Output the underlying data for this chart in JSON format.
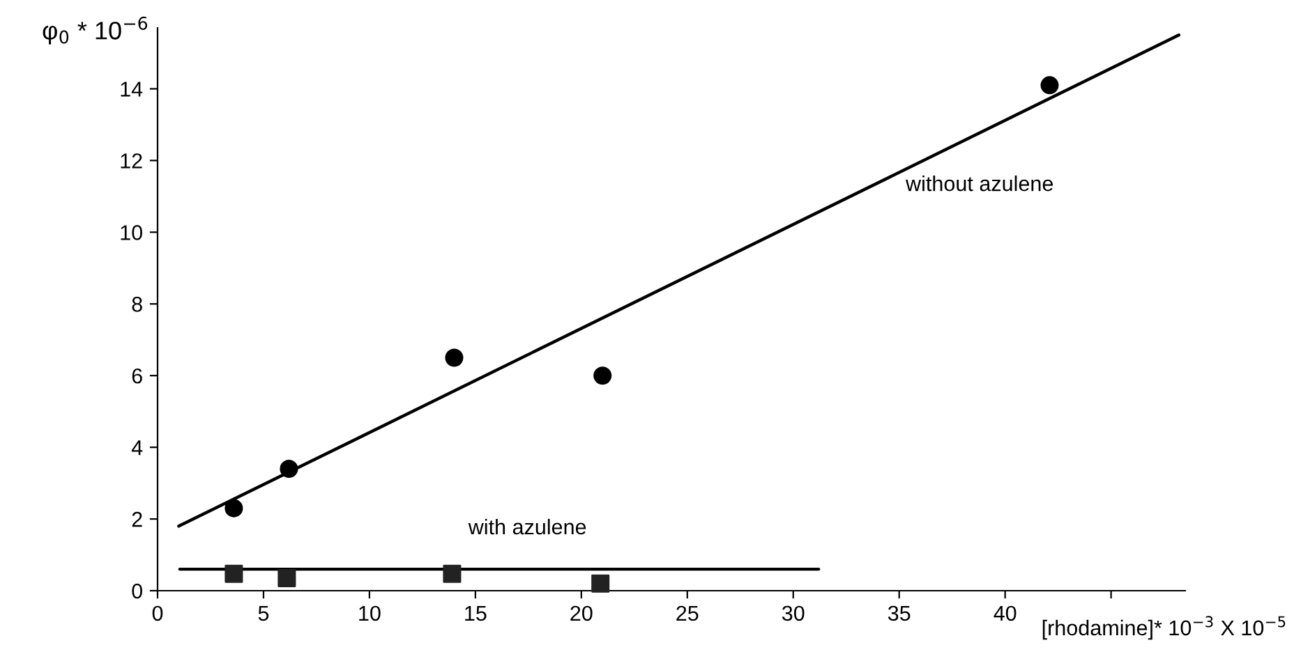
{
  "chart_data": {
    "type": "scatter",
    "xlabel": "[rhodamine]* 10$^{−3}$ X 10$^{−5}$",
    "ylabel": "φ$_{0}$ * 10$^{−6}$",
    "x": [
      3.6,
      6.2,
      14,
      21,
      42.1
    ],
    "series": [
      {
        "type": "scatter",
        "marker": "circle",
        "color": "#000000",
        "values": [
          2.3,
          3.4,
          6.5,
          6.0,
          14.1
        ]
      },
      {
        "type": "scatter",
        "marker": "square",
        "color": "#222222",
        "x": [
          3.6,
          6.1,
          13.9,
          20.9
        ],
        "values": [
          0.47,
          0.35,
          0.47,
          0.2
        ]
      },
      {
        "type": "line",
        "marker": "none",
        "color": "#000000",
        "x": [
          1,
          48.2
        ],
        "values": [
          1.8,
          15.5
        ]
      },
      {
        "type": "line",
        "marker": "none",
        "color": "#000000",
        "x": [
          1.05,
          31.2
        ],
        "values": [
          0.6,
          0.6
        ]
      }
    ],
    "annotations": [
      "without azulene",
      "with azulene"
    ],
    "xlim": [
      0,
      48.5
    ],
    "xticks": [
      0,
      5,
      10,
      15,
      20,
      25,
      30,
      35,
      40,
      {
        "value": 45,
        "label": null
      }
    ],
    "ylim": [
      0,
      15.7
    ],
    "yticks": [
      0,
      2,
      4,
      6,
      8,
      10,
      12,
      14
    ],
    "grid": false,
    "legend": false
  }
}
